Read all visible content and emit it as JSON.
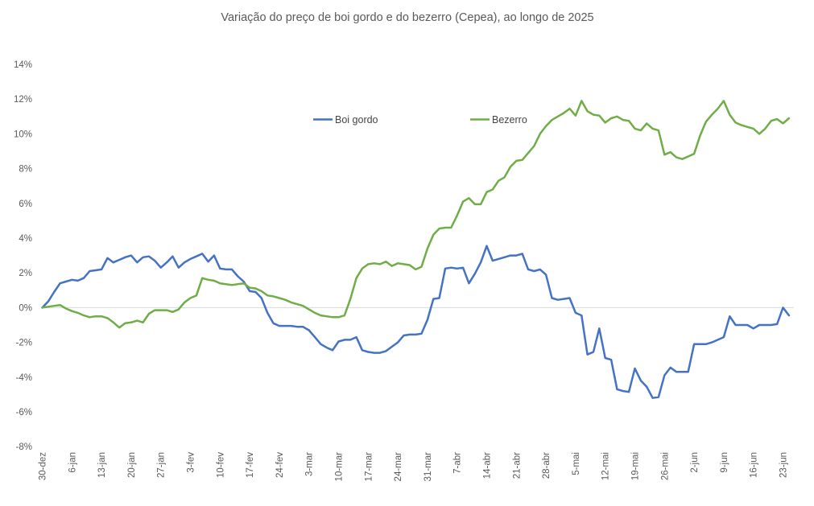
{
  "title": "Variação do preço de boi gordo  e do bezerro (Cepea), ao longo de 2025",
  "legend": {
    "items": [
      {
        "label": "Boi gordo",
        "color": "#4472C4"
      },
      {
        "label": "Bezerro",
        "color": "#70AD47"
      }
    ],
    "position": "top-center-inside"
  },
  "axes": {
    "y_unit": "%",
    "zero_line_color": "#d9d9d9",
    "tick_color": "#595959"
  },
  "chart_data": {
    "type": "line",
    "title": "Variação do preço de boi gordo  e do bezerro (Cepea), ao longo de 2025",
    "xlabel": "",
    "ylabel": "",
    "ylim": [
      -8,
      14
    ],
    "y_tick_step": 2,
    "y_tick_labels": [
      "14%",
      "12%",
      "10%",
      "8%",
      "6%",
      "4%",
      "2%",
      "0%",
      "-2%",
      "-4%",
      "-6%",
      "-8%"
    ],
    "grid": "zero-line-only",
    "legend_position": "top-center-inside",
    "x_is_daily_index": true,
    "x_tick_labels": [
      "30-dez",
      "6-jan",
      "13-jan",
      "20-jan",
      "27-jan",
      "3-fev",
      "10-fev",
      "17-fev",
      "24-fev",
      "3-mar",
      "10-mar",
      "17-mar",
      "24-mar",
      "31-mar",
      "7-abr",
      "14-abr",
      "21-abr",
      "28-abr",
      "5-mai",
      "12-mai",
      "19-mai",
      "26-mai",
      "2-jun",
      "9-jun",
      "16-jun",
      "23-jun"
    ],
    "x_tick_indices": [
      0,
      5,
      10,
      15,
      20,
      25,
      30,
      35,
      40,
      45,
      50,
      55,
      60,
      65,
      70,
      75,
      80,
      85,
      90,
      95,
      100,
      105,
      110,
      115,
      120,
      125
    ],
    "series": [
      {
        "name": "Boi gordo",
        "color": "#4472C4",
        "values": [
          0.0,
          0.35,
          0.9,
          1.4,
          1.5,
          1.6,
          1.55,
          1.7,
          2.1,
          2.15,
          2.2,
          2.85,
          2.6,
          2.75,
          2.9,
          3.0,
          2.6,
          2.9,
          2.95,
          2.7,
          2.3,
          2.6,
          2.95,
          2.3,
          2.6,
          2.8,
          2.95,
          3.1,
          2.65,
          3.0,
          2.25,
          2.2,
          2.2,
          1.8,
          1.5,
          0.95,
          0.9,
          0.55,
          -0.3,
          -0.9,
          -1.05,
          -1.05,
          -1.05,
          -1.1,
          -1.1,
          -1.3,
          -1.7,
          -2.1,
          -2.3,
          -2.45,
          -1.95,
          -1.85,
          -1.85,
          -1.7,
          -2.45,
          -2.55,
          -2.6,
          -2.6,
          -2.5,
          -2.25,
          -2.0,
          -1.6,
          -1.55,
          -1.55,
          -1.5,
          -0.7,
          0.5,
          0.55,
          2.25,
          2.3,
          2.25,
          2.3,
          1.4,
          1.95,
          2.6,
          3.55,
          2.7,
          2.8,
          2.9,
          3.0,
          3.0,
          3.1,
          2.2,
          2.1,
          2.2,
          1.9,
          0.55,
          0.45,
          0.5,
          0.55,
          -0.3,
          -0.45,
          -2.7,
          -2.55,
          -1.2,
          -2.9,
          -3.0,
          -4.7,
          -4.8,
          -4.85,
          -3.5,
          -4.2,
          -4.55,
          -5.2,
          -5.15,
          -3.9,
          -3.45,
          -3.7,
          -3.7,
          -3.7,
          -2.1,
          -2.1,
          -2.1,
          -2.0,
          -1.85,
          -1.7,
          -0.5,
          -1.0,
          -1.0,
          -1.0,
          -1.2,
          -1.0,
          -1.0,
          -1.0,
          -0.95,
          0.0,
          -0.45
        ]
      },
      {
        "name": "Bezerro",
        "color": "#70AD47",
        "values": [
          0.0,
          0.05,
          0.1,
          0.15,
          -0.05,
          -0.2,
          -0.3,
          -0.45,
          -0.55,
          -0.5,
          -0.5,
          -0.6,
          -0.85,
          -1.15,
          -0.9,
          -0.85,
          -0.75,
          -0.85,
          -0.35,
          -0.15,
          -0.15,
          -0.15,
          -0.25,
          -0.1,
          0.3,
          0.55,
          0.7,
          1.7,
          1.6,
          1.55,
          1.4,
          1.35,
          1.3,
          1.35,
          1.4,
          1.15,
          1.1,
          0.95,
          0.7,
          0.65,
          0.55,
          0.45,
          0.3,
          0.2,
          0.1,
          -0.1,
          -0.3,
          -0.45,
          -0.5,
          -0.55,
          -0.55,
          -0.45,
          0.5,
          1.7,
          2.25,
          2.5,
          2.55,
          2.5,
          2.65,
          2.4,
          2.55,
          2.5,
          2.45,
          2.2,
          2.35,
          3.4,
          4.2,
          4.55,
          4.6,
          4.6,
          5.3,
          6.1,
          6.3,
          5.95,
          5.95,
          6.65,
          6.8,
          7.3,
          7.5,
          8.1,
          8.45,
          8.5,
          8.9,
          9.3,
          10.0,
          10.45,
          10.8,
          11.0,
          11.2,
          11.45,
          11.05,
          11.9,
          11.3,
          11.1,
          11.05,
          10.65,
          10.9,
          11.0,
          10.8,
          10.75,
          10.3,
          10.2,
          10.6,
          10.3,
          10.2,
          8.8,
          8.95,
          8.65,
          8.55,
          8.7,
          8.85,
          9.9,
          10.7,
          11.1,
          11.45,
          11.9,
          11.1,
          10.65,
          10.5,
          10.4,
          10.3,
          10.0,
          10.3,
          10.75,
          10.85,
          10.6,
          10.9
        ]
      }
    ]
  }
}
